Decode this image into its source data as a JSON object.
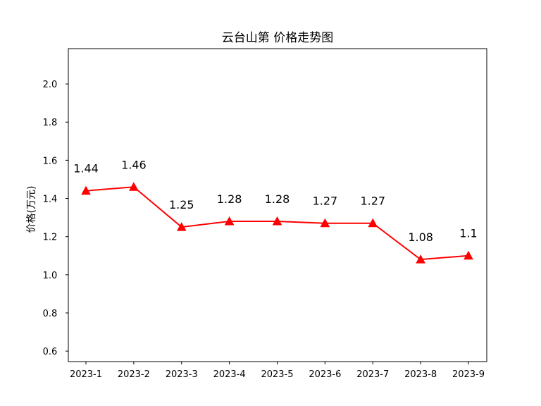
{
  "chart_data": {
    "type": "line",
    "title": "云台山第 价格走势图",
    "xlabel": "",
    "ylabel": "价格(万元)",
    "categories": [
      "2023-1",
      "2023-2",
      "2023-3",
      "2023-4",
      "2023-5",
      "2023-6",
      "2023-7",
      "2023-8",
      "2023-9"
    ],
    "series": [
      {
        "values": [
          1.44,
          1.46,
          1.25,
          1.28,
          1.28,
          1.27,
          1.27,
          1.08,
          1.1
        ],
        "data_labels": [
          "1.44",
          "1.46",
          "1.25",
          "1.28",
          "1.28",
          "1.27",
          "1.27",
          "1.08",
          "1.1"
        ],
        "color": "#ff0000",
        "marker": "triangle-up"
      }
    ],
    "yticks": [
      0.6,
      0.8,
      1.0,
      1.2,
      1.4,
      1.6,
      1.8,
      2.0
    ],
    "ytick_labels": [
      "0.6",
      "0.8",
      "1.0",
      "1.2",
      "1.4",
      "1.6",
      "1.8",
      "2.0"
    ],
    "ylim": [
      0.545,
      2.185
    ],
    "grid": false,
    "legend": "none"
  }
}
